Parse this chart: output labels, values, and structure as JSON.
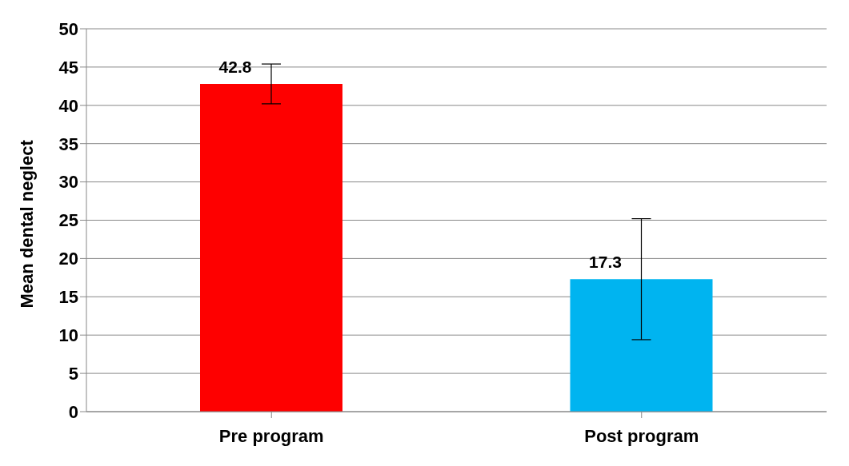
{
  "chart_data": {
    "type": "bar",
    "ylabel": "Mean dental neglect",
    "categories": [
      "Pre program",
      "Post program"
    ],
    "values": [
      42.8,
      17.3
    ],
    "colors": [
      "#fe0000",
      "#00b4f0"
    ],
    "errors": [
      2.6,
      7.9
    ],
    "data_labels": true,
    "ylim": [
      0,
      50
    ],
    "yticks": [
      0,
      5,
      10,
      15,
      20,
      25,
      30,
      35,
      40,
      45,
      50
    ],
    "grid": "y",
    "legend": false
  }
}
